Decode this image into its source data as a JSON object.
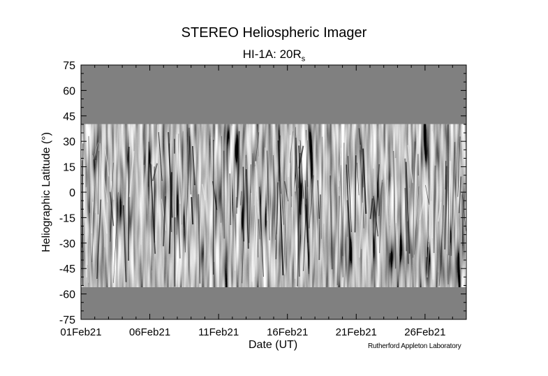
{
  "title": "STEREO Heliospheric Imager",
  "subtitle_main": "HI-1A: 20R",
  "subtitle_sub": "s",
  "credit": "Rutherford Appleton Laboratory",
  "chart_data": {
    "type": "heatmap",
    "title": "STEREO Heliospheric Imager",
    "subtitle": "HI-1A: 20Rs",
    "xlabel": "Date (UT)",
    "ylabel": "Heliographic Latitude (°)",
    "x_ticks": [
      "01Feb21",
      "06Feb21",
      "11Feb21",
      "16Feb21",
      "21Feb21",
      "26Feb21"
    ],
    "x_tick_days": [
      0,
      5,
      10,
      15,
      20,
      25
    ],
    "xlim_days": [
      0,
      28
    ],
    "y_ticks": [
      75,
      60,
      45,
      30,
      15,
      0,
      -15,
      -30,
      -45,
      -60,
      -75
    ],
    "ylim": [
      -75,
      75
    ],
    "data_lat_range": [
      -56,
      40
    ],
    "fill_color": "#808080"
  }
}
